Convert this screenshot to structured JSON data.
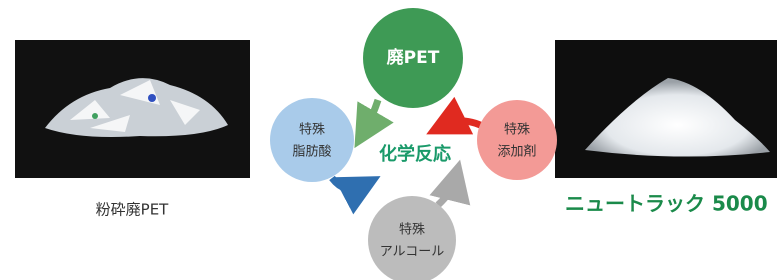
{
  "left_image": {
    "caption": "粉砕廃PET"
  },
  "right_image": {
    "caption": "ニュートラック 5000"
  },
  "center": {
    "label": "化学反応"
  },
  "nodes": [
    {
      "lines": [
        "廃PET"
      ]
    },
    {
      "lines": [
        "特殊",
        "脂肪酸"
      ]
    },
    {
      "lines": [
        "特殊",
        "添加剤"
      ]
    },
    {
      "lines": [
        "特殊",
        "アルコール"
      ]
    }
  ]
}
